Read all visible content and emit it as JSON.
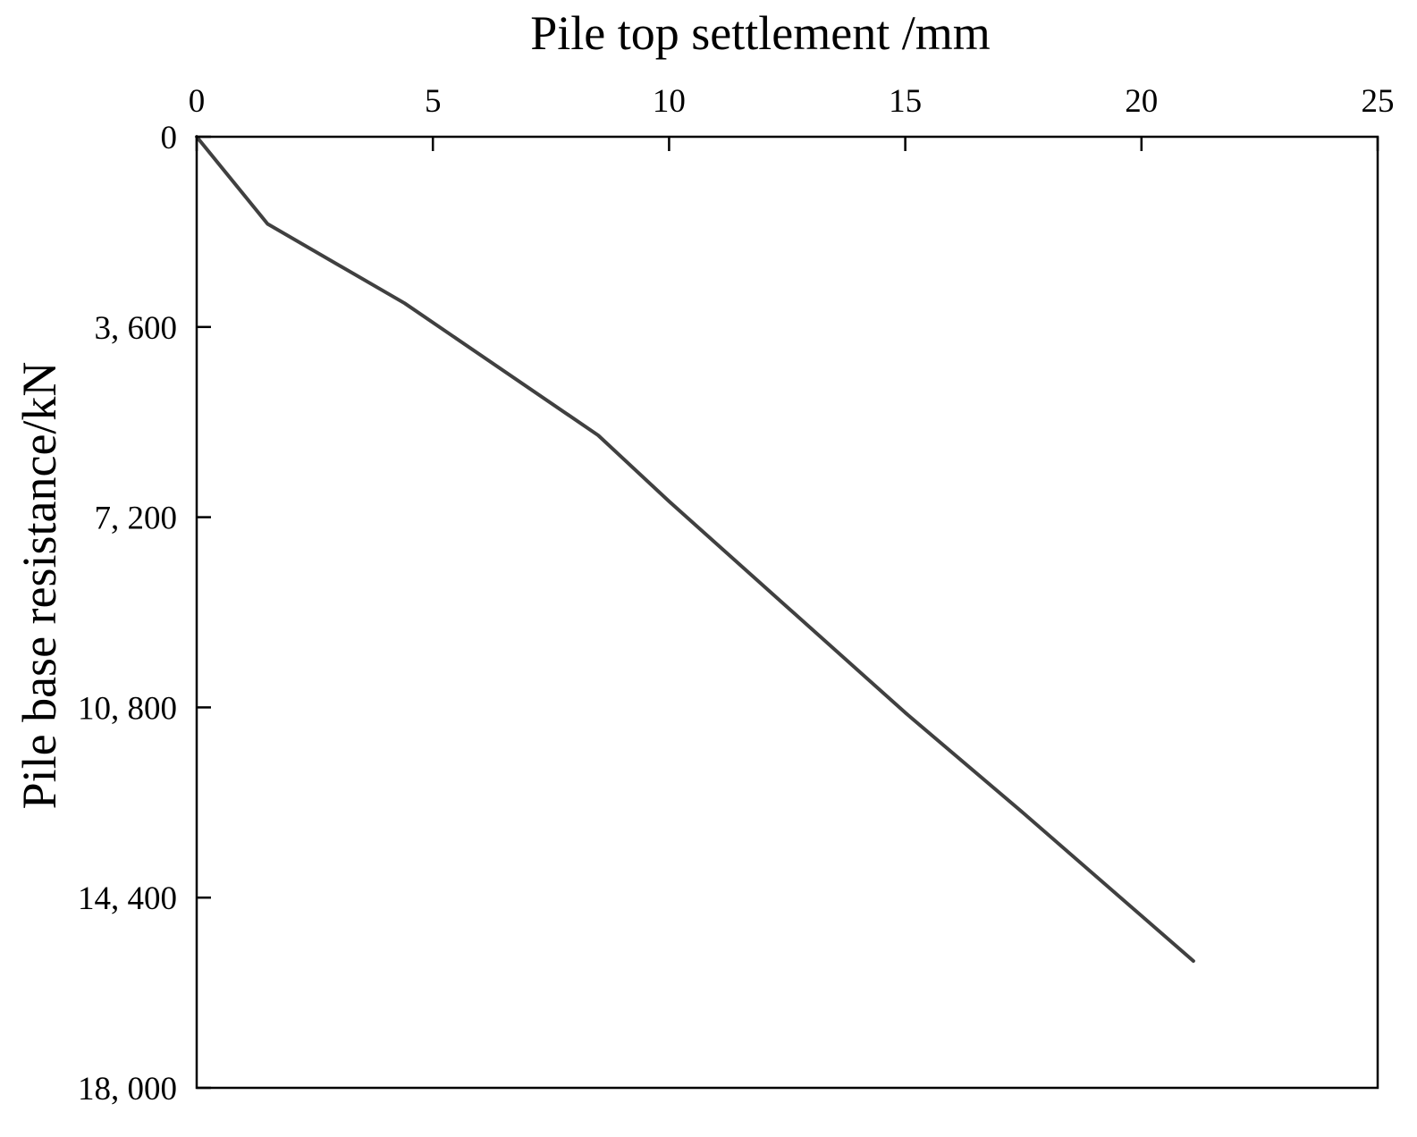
{
  "chart_data": {
    "type": "line",
    "title": "",
    "xlabel": "Pile top settlement /mm",
    "ylabel": "Pile base resistance/kN",
    "xlim": [
      0,
      25
    ],
    "ylim": [
      0,
      18000
    ],
    "y_inverted": true,
    "x_axis_position": "top",
    "grid": false,
    "legend": "none",
    "x_ticks": [
      {
        "value": 0,
        "label": "0"
      },
      {
        "value": 5,
        "label": "5"
      },
      {
        "value": 10,
        "label": "10"
      },
      {
        "value": 15,
        "label": "15"
      },
      {
        "value": 20,
        "label": "20"
      },
      {
        "value": 25,
        "label": "25"
      }
    ],
    "y_ticks": [
      {
        "value": 0,
        "label": "0"
      },
      {
        "value": 3600,
        "label": "3, 600"
      },
      {
        "value": 7200,
        "label": "7, 200"
      },
      {
        "value": 10800,
        "label": "10, 800"
      },
      {
        "value": 14400,
        "label": "14, 400"
      },
      {
        "value": 18000,
        "label": "18, 000"
      }
    ],
    "series": [
      {
        "color": "#404040",
        "points": [
          {
            "x": 0,
            "y": 0
          },
          {
            "x": 1.5,
            "y": 1650
          },
          {
            "x": 4.4,
            "y": 3150
          },
          {
            "x": 8.5,
            "y": 5650
          },
          {
            "x": 10.0,
            "y": 6900
          },
          {
            "x": 12.5,
            "y": 8900
          },
          {
            "x": 15.0,
            "y": 10900
          },
          {
            "x": 17.5,
            "y": 12800
          },
          {
            "x": 21.1,
            "y": 15600
          }
        ]
      }
    ]
  }
}
